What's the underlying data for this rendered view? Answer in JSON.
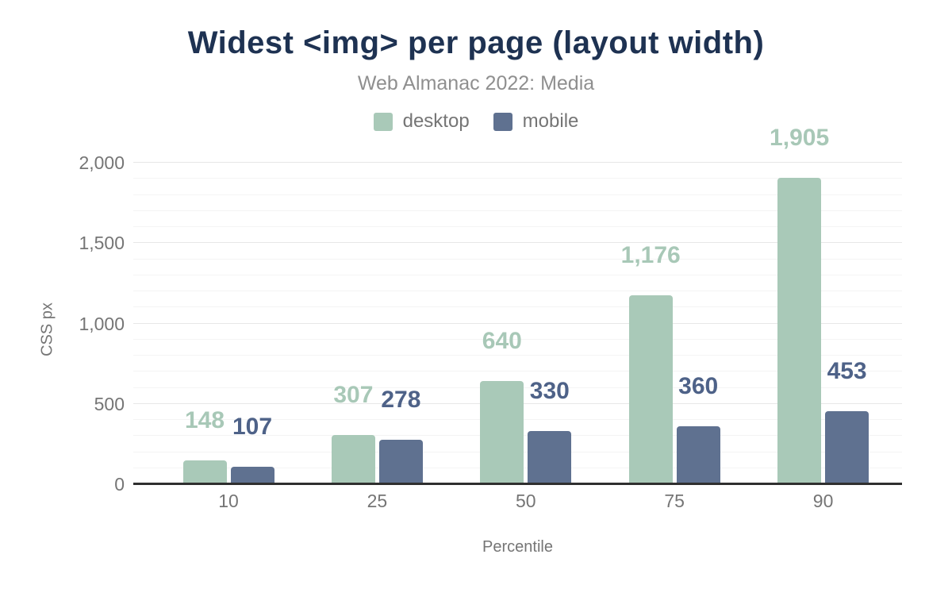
{
  "title": "Widest <img> per page (layout width)",
  "subtitle": "Web Almanac 2022: Media",
  "axes": {
    "y_title": "CSS px",
    "x_title": "Percentile"
  },
  "colors": {
    "background": "#ffffff",
    "title": "#1e3252",
    "subtitle": "#8f8f8f",
    "tick_text": "#757575",
    "axis_line": "#2f2f2f",
    "grid_minor": "#f4f4f4",
    "grid_major": "#e7e7e7",
    "desktop": "#a9c9b8",
    "mobile": "#5f7190",
    "desktop_label": "#a8c8b7",
    "mobile_label": "#4e6288"
  },
  "chart_data": {
    "type": "bar",
    "title": "Widest <img> per page (layout width)",
    "subtitle": "Web Almanac 2022: Media",
    "categories": [
      "10",
      "25",
      "50",
      "75",
      "90"
    ],
    "series": [
      {
        "name": "desktop",
        "color": "#a9c9b8",
        "label_color": "#a8c8b7",
        "values": [
          148,
          307,
          640,
          1176,
          1905
        ]
      },
      {
        "name": "mobile",
        "color": "#5f7190",
        "label_color": "#4e6288",
        "values": [
          107,
          278,
          330,
          360,
          453
        ]
      }
    ],
    "xlabel": "Percentile",
    "ylabel": "CSS px",
    "ylim": [
      0,
      2000
    ],
    "y_major_step": 500,
    "y_minor_step": 100,
    "grid": true,
    "legend_position": "top",
    "value_labels": true
  }
}
